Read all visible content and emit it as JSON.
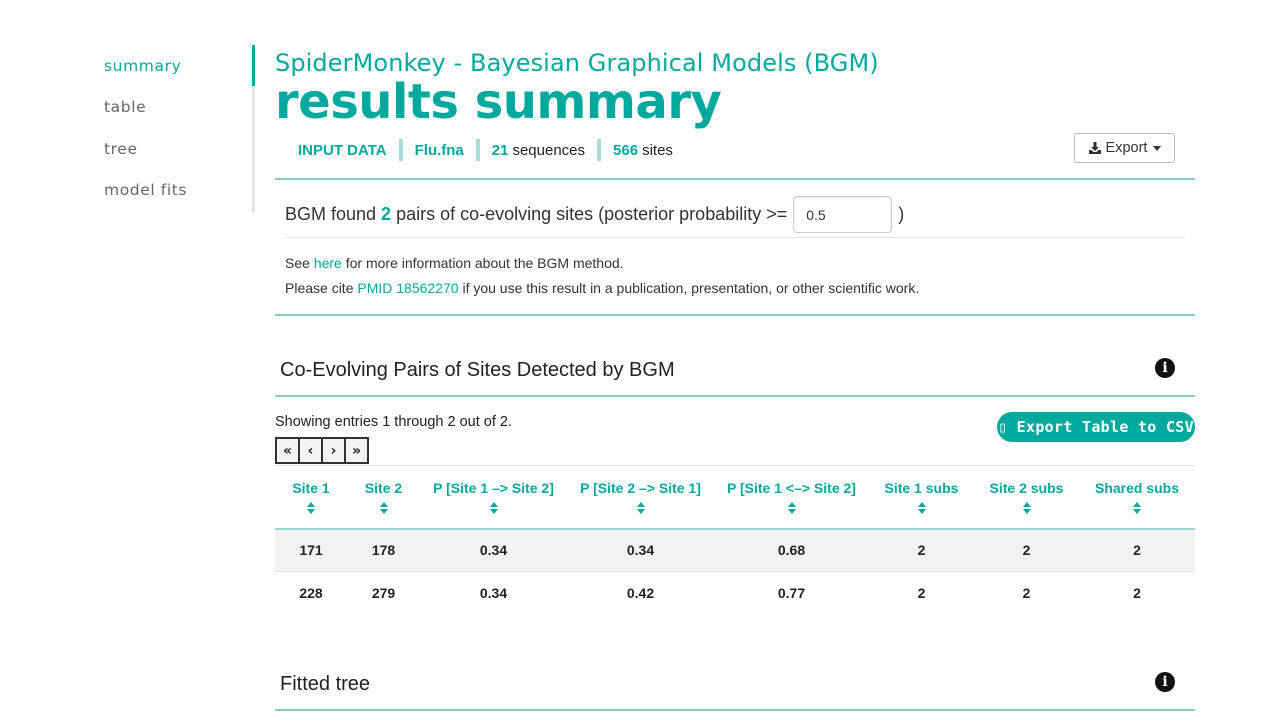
{
  "sidebar": {
    "items": [
      {
        "label": "summary",
        "active": true
      },
      {
        "label": "table"
      },
      {
        "label": "tree"
      },
      {
        "label": "model fits"
      }
    ]
  },
  "header": {
    "app_title": "SpiderMonkey - Bayesian Graphical Models (BGM)",
    "page_title": "results summary",
    "input_label": "INPUT DATA",
    "file_name": "Flu.fna",
    "sequences_count": "21",
    "sequences_label": "sequences",
    "sites_count": "566",
    "sites_label": "sites",
    "export_label": "Export"
  },
  "summary": {
    "found_prefix": "BGM found",
    "pairs_count": "2",
    "found_middle": "pairs of co-evolving sites (posterior probability >=",
    "threshold_value": "0.5",
    "found_suffix": ")",
    "see_prefix": "See",
    "see_link": "here",
    "see_suffix": "for more information about the BGM method.",
    "cite_prefix": "Please cite",
    "cite_link": "PMID 18562270",
    "cite_suffix": "if you use this result in a publication, presentation, or other scientific work."
  },
  "pairs_section": {
    "title": "Co-Evolving Pairs of Sites Detected by BGM",
    "showing": "Showing entries 1 through 2 out of 2.",
    "pager": [
      "«",
      "‹",
      "›",
      "»"
    ],
    "csv_button": "▯ Export Table to CSV",
    "columns": [
      "Site 1",
      "Site 2",
      "P [Site 1 –> Site 2]",
      "P [Site 2 –> Site 1]",
      "P [Site 1 <–> Site 2]",
      "Site 1 subs",
      "Site 2 subs",
      "Shared subs"
    ],
    "rows": [
      [
        "171",
        "178",
        "0.34",
        "0.34",
        "0.68",
        "2",
        "2",
        "2"
      ],
      [
        "228",
        "279",
        "0.34",
        "0.42",
        "0.77",
        "2",
        "2",
        "2"
      ]
    ]
  },
  "tree_section": {
    "title": "Fitted tree"
  },
  "icons": {
    "info": "info-circle-icon",
    "download": "download-icon",
    "sort": "sort-icon"
  },
  "colors": {
    "accent": "#00a99d"
  }
}
